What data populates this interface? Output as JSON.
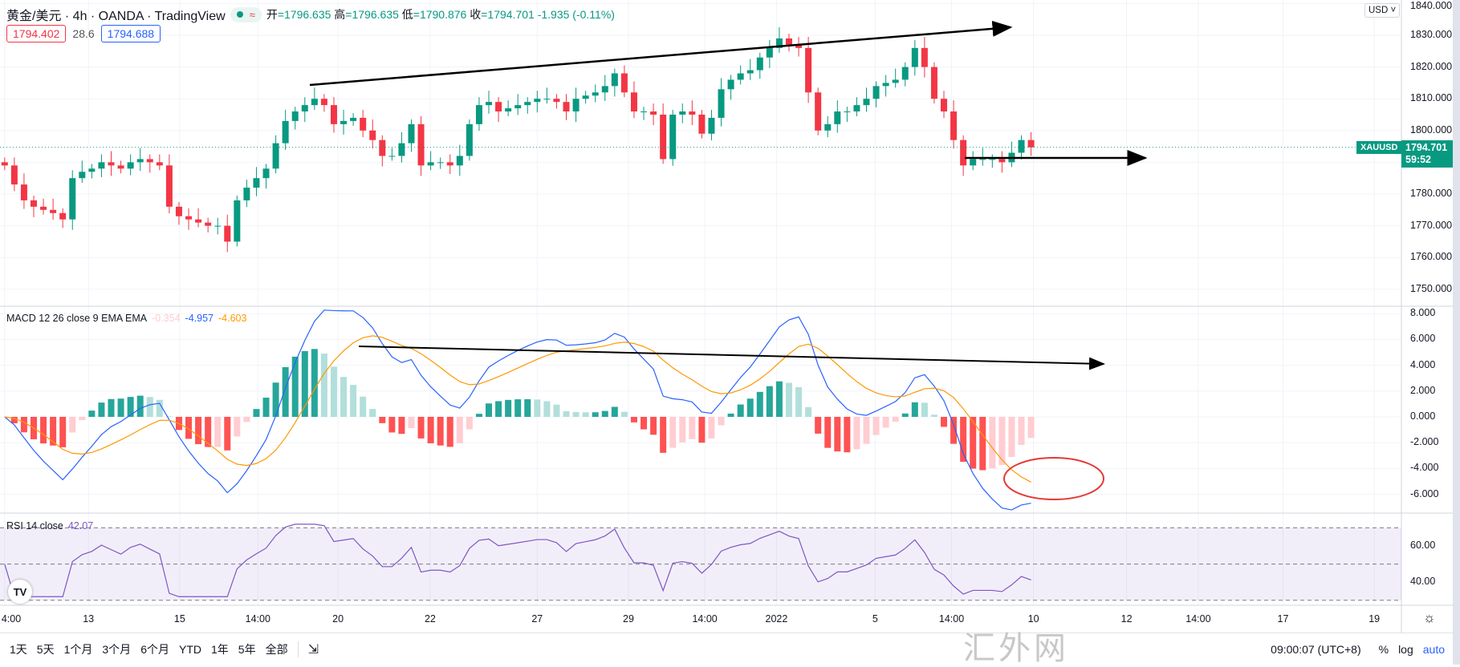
{
  "header": {
    "symbol_title": "黄金/美元 · 4h · OANDA · TradingView",
    "ohlc": [
      {
        "k": "开",
        "v": "=1796.635"
      },
      {
        "k": "高",
        "v": "=1796.635"
      },
      {
        "k": "低",
        "v": "=1790.876"
      },
      {
        "k": "收",
        "v": "=1794.701"
      }
    ],
    "change": "-1.935 (-0.11%)",
    "bid": "1794.402",
    "spread": "28.6",
    "ask": "1794.688"
  },
  "price_axis": {
    "currency": "USD ˅",
    "ticks": [
      "1840.000",
      "1830.000",
      "1820.000",
      "1810.000",
      "1800.000",
      "1780.000",
      "1770.000",
      "1760.000",
      "1750.000"
    ],
    "symbol_tag": "XAUUSD",
    "last_price": "1794.701",
    "countdown": "59:52"
  },
  "macd": {
    "label": "MACD 12 26 close 9 EMA EMA",
    "hist": "-0.354",
    "macd": "-4.957",
    "signal": "-4.603",
    "ticks": [
      "8.000",
      "6.000",
      "4.000",
      "2.000",
      "0.000",
      "-2.000",
      "-4.000",
      "-6.000"
    ]
  },
  "rsi": {
    "label": "RSI 14 close",
    "value": "42.07",
    "ticks": [
      "60.00",
      "40.00"
    ]
  },
  "time_axis": [
    "4:00",
    "13",
    "15",
    "14:00",
    "20",
    "22",
    "27",
    "29",
    "14:00",
    "2022",
    "5",
    "14:00",
    "10",
    "12",
    "14:00",
    "17",
    "19"
  ],
  "bottom_bar": {
    "ranges": [
      "1天",
      "5天",
      "1个月",
      "3个月",
      "6个月",
      "YTD",
      "1年",
      "5年",
      "全部"
    ],
    "clock": "09:00:07 (UTC+8)",
    "percent": "%",
    "log": "log",
    "auto": "auto"
  },
  "watermark": "汇外网",
  "colors": {
    "up": "#089981",
    "down": "#f23645",
    "macd": "#2962ff",
    "signal": "#ff9800",
    "rsi": "#7e57c2"
  },
  "chart_data": {
    "type": "candlestick",
    "interval": "4h",
    "start_price": 1790,
    "closes": [
      1789,
      1783,
      1778,
      1776,
      1775,
      1774,
      1772,
      1785,
      1787,
      1788,
      1790,
      1789,
      1788,
      1790,
      1791,
      1790,
      1789,
      1776,
      1773,
      1772,
      1771,
      1770,
      1770,
      1765,
      1778,
      1782,
      1785,
      1788,
      1796,
      1803,
      1806,
      1808,
      1810,
      1808,
      1802,
      1803,
      1804,
      1800,
      1797,
      1792,
      1792,
      1796,
      1802,
      1789,
      1790,
      1790,
      1789,
      1792,
      1802,
      1808,
      1809,
      1806,
      1807,
      1808,
      1809,
      1810,
      1810,
      1809,
      1806,
      1810,
      1811,
      1812,
      1814,
      1818,
      1812,
      1806,
      1806,
      1805,
      1791,
      1805,
      1806,
      1805,
      1799,
      1804,
      1813,
      1816,
      1818,
      1819,
      1823,
      1826,
      1829,
      1827,
      1826,
      1812,
      1800,
      1802,
      1806,
      1806,
      1808,
      1810,
      1814,
      1815,
      1816,
      1820,
      1826,
      1820,
      1810,
      1806,
      1797,
      1789,
      1791,
      1791,
      1791,
      1790,
      1793,
      1797,
      1794.7
    ],
    "ylim": [
      1745,
      1840
    ]
  }
}
